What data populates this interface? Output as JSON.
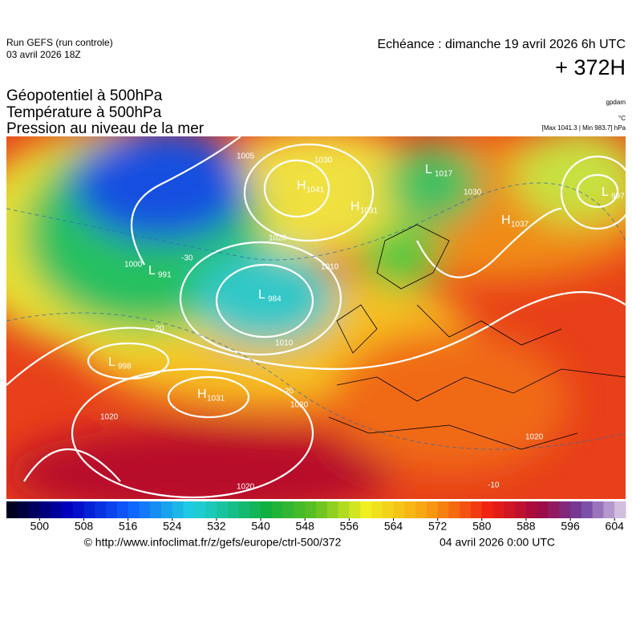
{
  "header": {
    "run": "Run GEFS (run controle)",
    "run_date": "03 avril 2026 18Z",
    "valid": "Echéance : dimanche 19 avril 2026 6h UTC",
    "lead": "+ 372H"
  },
  "titles": [
    "Géopotentiel à 500hPa",
    "Température à 500hPa",
    "Pression au niveau de la mer"
  ],
  "units": {
    "geopotential": "gpdam",
    "temperature": "°C",
    "extremes": "[Max 1041.3 | Min 983.7] hPa"
  },
  "map": {
    "centers": [
      {
        "kind": "H",
        "value": "1041"
      },
      {
        "kind": "H",
        "value": "1031"
      },
      {
        "kind": "L",
        "value": "1017"
      },
      {
        "kind": "L",
        "value": "997"
      },
      {
        "kind": "H",
        "value": "1037"
      },
      {
        "kind": "L",
        "value": "991"
      },
      {
        "kind": "L",
        "value": "984"
      },
      {
        "kind": "L",
        "value": "998"
      },
      {
        "kind": "H",
        "value": "1031"
      }
    ],
    "contour_labels": [
      "1005",
      "1020",
      "1010",
      "1000",
      "1010",
      "1020",
      "1020",
      "1020",
      "1020",
      "-30",
      "-20",
      "20",
      "-10",
      "1030",
      "1030"
    ]
  },
  "colorbar": {
    "range": [
      494,
      606
    ],
    "step": 2,
    "ticks": [
      500,
      508,
      516,
      524,
      532,
      540,
      548,
      556,
      564,
      572,
      580,
      588,
      596,
      604
    ]
  },
  "footer": {
    "source": "© http://www.infoclimat.fr/z/gefs/europe/ctrl-500/372",
    "time": "04 avril 2026  0:00 UTC"
  }
}
